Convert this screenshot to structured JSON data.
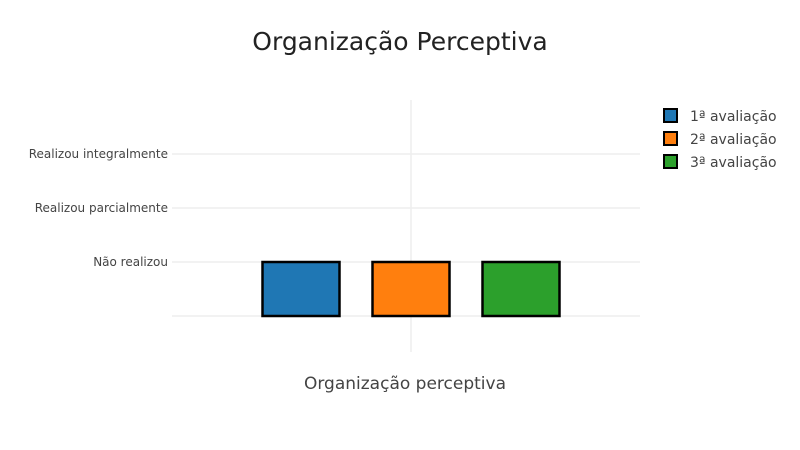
{
  "chart_data": {
    "type": "bar",
    "title": "Organização Perceptiva",
    "xlabel": "Organização perceptiva",
    "ylabel": "",
    "y_categories": [
      "Não realizou",
      "Realizou parcialmente",
      "Realizou integralmente"
    ],
    "ylim": [
      0,
      3
    ],
    "categories": [
      "Organização perceptiva"
    ],
    "series": [
      {
        "name": "1ª avaliação",
        "values": [
          1
        ],
        "color": "#1f77b4"
      },
      {
        "name": "2ª avaliação",
        "values": [
          1
        ],
        "color": "#ff7f0e"
      },
      {
        "name": "3ª avaliação",
        "values": [
          1
        ],
        "color": "#2ca02c"
      }
    ],
    "grid": true,
    "legend_position": "top-right"
  }
}
